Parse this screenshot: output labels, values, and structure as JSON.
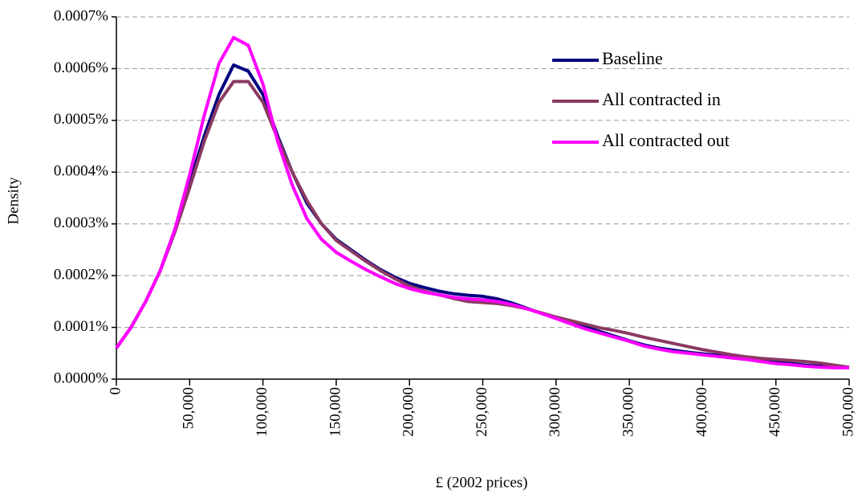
{
  "chart_data": {
    "type": "line",
    "x_label": "£ (2002 prices)",
    "y_label": "Density",
    "x": [
      0,
      10000,
      20000,
      30000,
      40000,
      50000,
      60000,
      70000,
      80000,
      90000,
      100000,
      110000,
      120000,
      130000,
      140000,
      150000,
      160000,
      170000,
      180000,
      190000,
      200000,
      210000,
      220000,
      230000,
      240000,
      250000,
      260000,
      270000,
      280000,
      290000,
      300000,
      310000,
      320000,
      330000,
      340000,
      350000,
      360000,
      370000,
      380000,
      390000,
      400000,
      410000,
      420000,
      430000,
      440000,
      450000,
      460000,
      470000,
      480000,
      490000,
      500000
    ],
    "series": [
      {
        "name": "Baseline",
        "color": "#000080",
        "values": [
          6e-05,
          0.0001,
          0.00015,
          0.00021,
          0.00029,
          0.00038,
          0.00047,
          0.00055,
          0.000607,
          0.000595,
          0.00055,
          0.00047,
          0.0004,
          0.00034,
          0.0003,
          0.00027,
          0.00025,
          0.00023,
          0.000212,
          0.000197,
          0.000185,
          0.000177,
          0.00017,
          0.000165,
          0.000162,
          0.00016,
          0.000155,
          0.000147,
          0.000137,
          0.000127,
          0.000119,
          0.00011,
          0.000101,
          9.2e-05,
          8.3e-05,
          7.4e-05,
          6.6e-05,
          6e-05,
          5.6e-05,
          5.2e-05,
          4.9e-05,
          4.6e-05,
          4.3e-05,
          4e-05,
          3.7e-05,
          3.3e-05,
          3e-05,
          2.7e-05,
          2.5e-05,
          2.4e-05,
          2.3e-05
        ]
      },
      {
        "name": "All contracted in",
        "color": "#8B3A62",
        "values": [
          6e-05,
          0.0001,
          0.00015,
          0.00021,
          0.000285,
          0.00037,
          0.00046,
          0.000535,
          0.000575,
          0.000575,
          0.000535,
          0.000465,
          0.0004,
          0.000345,
          0.0003,
          0.000268,
          0.000248,
          0.000228,
          0.00021,
          0.000194,
          0.00018,
          0.00017,
          0.000163,
          0.000156,
          0.00015,
          0.000148,
          0.000146,
          0.000142,
          0.000136,
          0.000128,
          0.00012,
          0.000113,
          0.000106,
          9.9e-05,
          9.4e-05,
          8.8e-05,
          8.1e-05,
          7.5e-05,
          6.9e-05,
          6.3e-05,
          5.7e-05,
          5.2e-05,
          4.7e-05,
          4.3e-05,
          4e-05,
          3.8e-05,
          3.6e-05,
          3.4e-05,
          3.1e-05,
          2.7e-05,
          2.3e-05
        ]
      },
      {
        "name": "All contracted out",
        "color": "#FF00FF",
        "values": [
          6e-05,
          0.0001,
          0.00015,
          0.00021,
          0.00029,
          0.000395,
          0.00051,
          0.00061,
          0.00066,
          0.000645,
          0.00057,
          0.00046,
          0.000375,
          0.00031,
          0.00027,
          0.000245,
          0.000228,
          0.000212,
          0.000198,
          0.000185,
          0.000175,
          0.000168,
          0.000163,
          0.000158,
          0.000155,
          0.000153,
          0.00015,
          0.000144,
          0.000136,
          0.000127,
          0.000117,
          0.000107,
          9.7e-05,
          8.9e-05,
          8.1e-05,
          7.3e-05,
          6.4e-05,
          5.8e-05,
          5.3e-05,
          5e-05,
          4.7e-05,
          4.4e-05,
          4.1e-05,
          3.8e-05,
          3.4e-05,
          3e-05,
          2.8e-05,
          2.5e-05,
          2.3e-05,
          2.2e-05,
          2.2e-05
        ]
      }
    ],
    "xlim": [
      0,
      500000
    ],
    "xticks": [
      0,
      {
        "value": 50000,
        "label": "50,000"
      },
      {
        "value": 100000,
        "label": "100,000"
      },
      {
        "value": 150000,
        "label": "150,000"
      },
      {
        "value": 200000,
        "label": "200,000"
      },
      {
        "value": 250000,
        "label": "250,000"
      },
      {
        "value": 300000,
        "label": "300,000"
      },
      {
        "value": 350000,
        "label": "350,000"
      },
      {
        "value": 400000,
        "label": "400,000"
      },
      {
        "value": 450000,
        "label": "450,000"
      },
      {
        "value": 500000,
        "label": "500,000"
      }
    ],
    "ylim": [
      0,
      0.0007
    ],
    "yticks": [
      {
        "value": 0,
        "label": "0.0000%"
      },
      {
        "value": 0.0001,
        "label": "0.0001%"
      },
      {
        "value": 0.0002,
        "label": "0.0002%"
      },
      {
        "value": 0.0003,
        "label": "0.0003%"
      },
      {
        "value": 0.0004,
        "label": "0.0004%"
      },
      {
        "value": 0.0005,
        "label": "0.0005%"
      },
      {
        "value": 0.0006,
        "label": "0.0006%"
      },
      {
        "value": 0.0007,
        "label": "0.0007%"
      }
    ],
    "grid": true,
    "legend": "top-right"
  }
}
